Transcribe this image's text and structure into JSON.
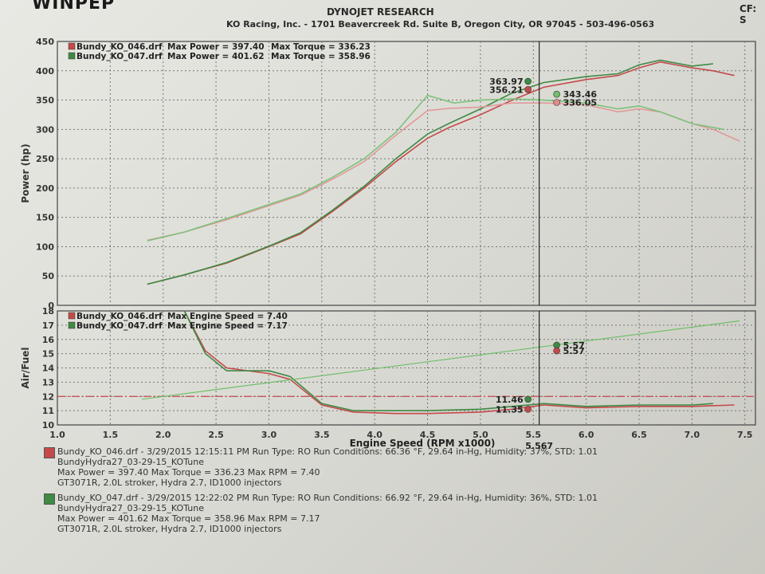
{
  "header": {
    "logo": "WINPEP",
    "company": "DYNOJET RESEARCH",
    "address": "KO Racing, Inc. - 1701 Beavercreek Rd. Suite B, Oregon City, OR 97045 - 503-496-0563",
    "cf": "CF: S"
  },
  "colors": {
    "run046": "#c44a4a",
    "run047": "#3f8a45"
  },
  "chart_data": [
    {
      "type": "line",
      "ylabel": "Power (hp)",
      "ylim": [
        0,
        450
      ],
      "xlim": [
        1.0,
        7.6
      ],
      "yticks": [
        "450",
        "400",
        "350",
        "300",
        "250",
        "200",
        "150",
        "100",
        "50",
        "0"
      ],
      "legend": [
        {
          "file": "Bundy_KO_046.drf",
          "power_label": "Max Power = 397.40",
          "torque_label": "Max Torque = 336.23"
        },
        {
          "file": "Bundy_KO_047.drf",
          "power_label": "Max Power = 401.62",
          "torque_label": "Max Torque = 358.96"
        }
      ],
      "series": [
        {
          "name": "Bundy_KO_046.drf",
          "kind": "power",
          "x": [
            1.85,
            2.2,
            2.6,
            3.0,
            3.3,
            3.6,
            3.9,
            4.2,
            4.5,
            4.7,
            5.0,
            5.3,
            5.6,
            6.0,
            6.3,
            6.5,
            6.7,
            7.0,
            7.2,
            7.4
          ],
          "y": [
            36,
            52,
            72,
            100,
            122,
            160,
            200,
            245,
            285,
            303,
            325,
            350,
            372,
            385,
            392,
            405,
            415,
            405,
            400,
            392
          ]
        },
        {
          "name": "Bundy_KO_047.drf",
          "kind": "power",
          "x": [
            1.85,
            2.2,
            2.6,
            3.0,
            3.3,
            3.6,
            3.9,
            4.2,
            4.5,
            4.7,
            5.0,
            5.3,
            5.6,
            6.0,
            6.3,
            6.5,
            6.7,
            7.0,
            7.2
          ],
          "y": [
            36,
            52,
            73,
            101,
            124,
            162,
            203,
            250,
            292,
            310,
            335,
            362,
            380,
            390,
            395,
            410,
            418,
            408,
            412
          ]
        },
        {
          "name": "Bundy_KO_046.drf",
          "kind": "torque",
          "x": [
            1.85,
            2.2,
            2.6,
            3.0,
            3.3,
            3.6,
            3.9,
            4.2,
            4.5,
            4.7,
            5.0,
            5.3,
            5.6,
            6.0,
            6.3,
            6.5,
            6.7,
            7.0,
            7.2,
            7.45
          ],
          "y": [
            111,
            125,
            146,
            170,
            188,
            215,
            245,
            290,
            332,
            336,
            338,
            345,
            345,
            342,
            330,
            335,
            330,
            310,
            300,
            280
          ]
        },
        {
          "name": "Bundy_KO_047.drf",
          "kind": "torque",
          "x": [
            1.85,
            2.2,
            2.6,
            3.0,
            3.3,
            3.6,
            3.9,
            4.2,
            4.5,
            4.75,
            5.0,
            5.3,
            5.6,
            6.0,
            6.3,
            6.5,
            6.7,
            7.0,
            7.3
          ],
          "y": [
            110,
            125,
            148,
            172,
            190,
            218,
            250,
            295,
            358,
            345,
            350,
            352,
            350,
            345,
            335,
            340,
            330,
            310,
            300
          ]
        }
      ],
      "cursor": {
        "x": 5.45,
        "labels": [
          {
            "text": "363.97",
            "y": 382,
            "color": "#3f8a45",
            "side": "left"
          },
          {
            "text": "356.21",
            "y": 368,
            "color": "#c44a4a",
            "side": "left"
          },
          {
            "text": "343.46",
            "y": 360,
            "color": "#6fbf6a",
            "side": "right"
          },
          {
            "text": "336.05",
            "y": 346,
            "color": "#e08a8a",
            "side": "right"
          }
        ]
      }
    },
    {
      "type": "line",
      "ylabel": "Air/Fuel",
      "xlabel": "Engine Speed (RPM x1000)",
      "ylim": [
        10,
        18
      ],
      "xlim": [
        1.0,
        7.6
      ],
      "yticks": [
        "18",
        "17",
        "16",
        "15",
        "14",
        "13",
        "12",
        "11",
        "10"
      ],
      "xticks": [
        "1.0",
        "1.5",
        "2.0",
        "2.5",
        "3.0",
        "3.5",
        "4.0",
        "4.5",
        "5.0",
        "5.5",
        "6.0",
        "6.5",
        "7.0",
        "7.5"
      ],
      "legend": [
        {
          "file": "Bundy_KO_046.drf",
          "speed_label": "Max Engine Speed = 7.40"
        },
        {
          "file": "Bundy_KO_047.drf",
          "speed_label": "Max Engine Speed = 7.17"
        }
      ],
      "reference_line": 12.0,
      "series": [
        {
          "name": "Bundy_KO_046.drf",
          "kind": "afr",
          "x": [
            2.2,
            2.4,
            2.6,
            3.0,
            3.2,
            3.5,
            3.8,
            4.2,
            4.5,
            5.0,
            5.3,
            5.6,
            6.0,
            6.5,
            7.0,
            7.4
          ],
          "y": [
            18.0,
            15.2,
            14.0,
            13.6,
            13.2,
            11.4,
            10.9,
            10.8,
            10.8,
            10.9,
            11.1,
            11.4,
            11.2,
            11.3,
            11.3,
            11.4
          ]
        },
        {
          "name": "Bundy_KO_047.drf",
          "kind": "afr",
          "x": [
            2.2,
            2.4,
            2.6,
            3.0,
            3.2,
            3.5,
            3.8,
            4.2,
            4.5,
            5.0,
            5.3,
            5.6,
            6.0,
            6.5,
            7.0,
            7.2
          ],
          "y": [
            18.0,
            15.0,
            13.8,
            13.8,
            13.4,
            11.5,
            11.0,
            11.0,
            11.0,
            11.1,
            11.3,
            11.5,
            11.3,
            11.4,
            11.4,
            11.5
          ]
        },
        {
          "name": "Max Engine Speed",
          "kind": "rpm",
          "x": [
            1.8,
            7.45
          ],
          "y": [
            11.8,
            17.3
          ]
        }
      ],
      "cursor": {
        "x": 5.45,
        "labels": [
          {
            "text": "5.57",
            "y": 15.6,
            "color": "#3f8a45",
            "side": "right"
          },
          {
            "text": "5.57",
            "y": 15.2,
            "color": "#c44a4a",
            "side": "right"
          },
          {
            "text": "11.46",
            "y": 11.8,
            "color": "#3f8a45",
            "side": "left"
          },
          {
            "text": "11.35",
            "y": 11.1,
            "color": "#c44a4a",
            "side": "left"
          }
        ]
      },
      "cursor_rpm_label": "5.567"
    }
  ],
  "footer": {
    "runs": [
      {
        "line1": "Bundy_KO_046.drf - 3/29/2015 12:15:11 PM  Run Type: RO  Run Conditions: 66.36 °F, 29.64 in-Hg,  Humidity: 37%, STD: 1.01",
        "line2": "BundyHydra27_03-29-15_KOTune",
        "line3": "Max Power = 397.40  Max Torque = 336.23  Max RPM = 7.40",
        "line4": "GT3071R, 2.0L stroker, Hydra 2.7, ID1000 injectors"
      },
      {
        "line1": "Bundy_KO_047.drf - 3/29/2015 12:22:02 PM  Run Type: RO  Run Conditions: 66.92 °F, 29.64 in-Hg,  Humidity: 36%, STD: 1.01",
        "line2": "BundyHydra27_03-29-15_KOTune",
        "line3": "Max Power = 401.62  Max Torque = 358.96  Max RPM = 7.17",
        "line4": "GT3071R, 2.0L stroker, Hydra 2.7, ID1000 injectors"
      }
    ]
  }
}
